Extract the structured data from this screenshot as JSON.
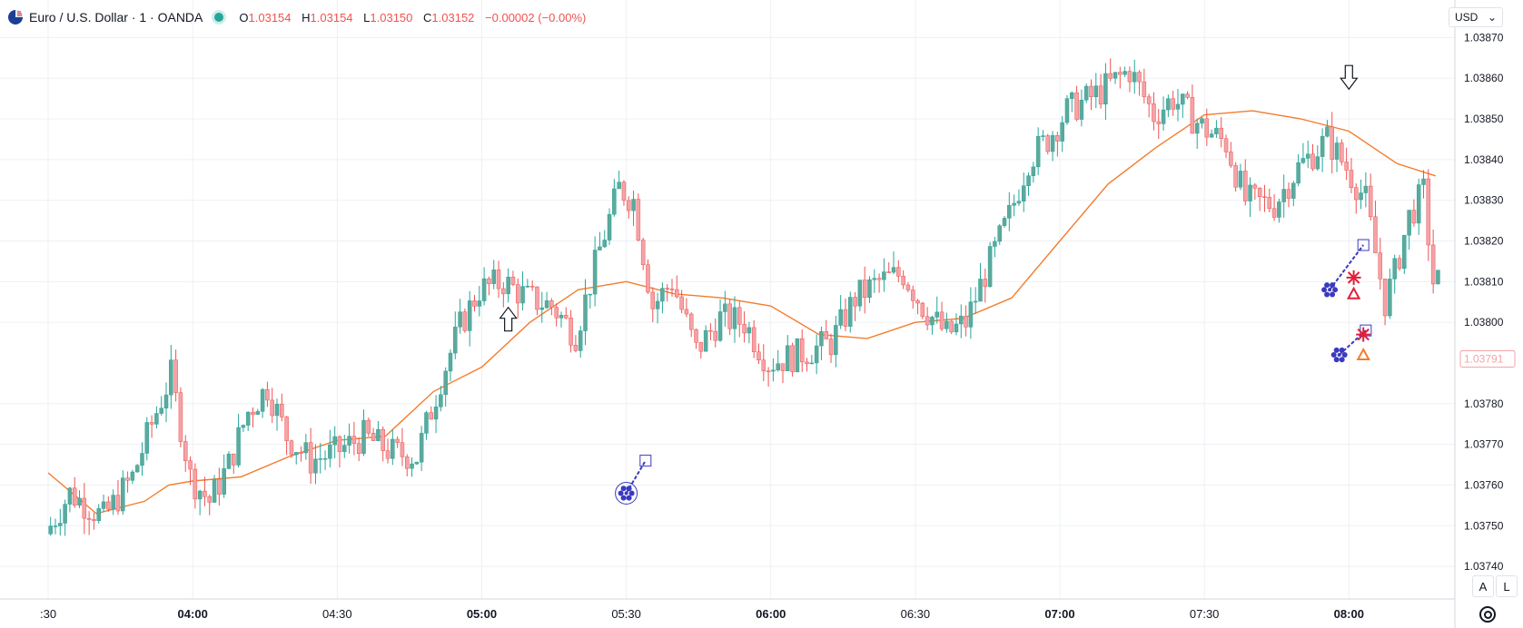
{
  "header": {
    "symbol_title": "Euro / U.S. Dollar · 1 · OANDA",
    "ohlc": {
      "o_label": "O",
      "o": "1.03154",
      "h_label": "H",
      "h": "1.03154",
      "l_label": "L",
      "l": "1.03150",
      "c_label": "C",
      "c": "1.03152",
      "change": "−0.00002 (−0.00%)"
    }
  },
  "toolbar": {
    "currency": "USD",
    "auto_button": "A",
    "log_button": "L"
  },
  "colors": {
    "up": "#26a69a",
    "down": "#ef5350",
    "up_fill": "#5fa89c",
    "down_fill": "#f4a3a8",
    "ma": "#f57c2b",
    "grid": "#eef0f4",
    "marker_blue": "#3a3ac0",
    "marker_red": "#e0203a",
    "marker_orange": "#f57c2b"
  },
  "chart_data": {
    "type": "candlestick",
    "ylim": [
      1.03732,
      1.03877
    ],
    "y_ticks": [
      "1.03870",
      "1.03860",
      "1.03850",
      "1.03840",
      "1.03830",
      "1.03820",
      "1.03810",
      "1.03800",
      "1.03780",
      "1.03770",
      "1.03760",
      "1.03750",
      "1.03740"
    ],
    "y_tick_values": [
      1.0387,
      1.0386,
      1.0385,
      1.0384,
      1.0383,
      1.0382,
      1.0381,
      1.038,
      1.0378,
      1.0377,
      1.0376,
      1.0375,
      1.0374
    ],
    "last_price_label": "1.03791",
    "last_price": 1.03791,
    "x_tick_labels": [
      ":30",
      "04:00",
      "04:30",
      "05:00",
      "05:30",
      "06:00",
      "06:30",
      "07:00",
      "07:30",
      "08:00"
    ],
    "x_tick_minutes": [
      -30,
      0,
      30,
      60,
      90,
      120,
      150,
      180,
      210,
      240
    ],
    "x_axis_minutes_per_label": "03:30 → 08:00",
    "moving_average": [
      [
        -30,
        1.03763
      ],
      [
        -20,
        1.03753
      ],
      [
        -10,
        1.03756
      ],
      [
        -5,
        1.0376
      ],
      [
        0,
        1.03761
      ],
      [
        10,
        1.03762
      ],
      [
        20,
        1.03767
      ],
      [
        30,
        1.03771
      ],
      [
        40,
        1.03772
      ],
      [
        50,
        1.03783
      ],
      [
        60,
        1.03789
      ],
      [
        70,
        1.038
      ],
      [
        80,
        1.03808
      ],
      [
        90,
        1.0381
      ],
      [
        100,
        1.03807
      ],
      [
        110,
        1.03806
      ],
      [
        120,
        1.03804
      ],
      [
        130,
        1.03797
      ],
      [
        140,
        1.03796
      ],
      [
        150,
        1.038
      ],
      [
        160,
        1.03801
      ],
      [
        170,
        1.03806
      ],
      [
        180,
        1.0382
      ],
      [
        190,
        1.03834
      ],
      [
        200,
        1.03843
      ],
      [
        210,
        1.03851
      ],
      [
        220,
        1.03852
      ],
      [
        230,
        1.0385
      ],
      [
        240,
        1.03847
      ],
      [
        250,
        1.03839
      ],
      [
        258,
        1.03836
      ]
    ],
    "candle_path": [
      [
        -30,
        1.03748
      ],
      [
        -25,
        1.03758
      ],
      [
        -18,
        1.03752
      ],
      [
        -12,
        1.03762
      ],
      [
        -8,
        1.03775
      ],
      [
        -4,
        1.03787
      ],
      [
        0,
        1.03762
      ],
      [
        4,
        1.03756
      ],
      [
        8,
        1.03765
      ],
      [
        12,
        1.03778
      ],
      [
        16,
        1.03784
      ],
      [
        20,
        1.03772
      ],
      [
        25,
        1.03766
      ],
      [
        30,
        1.03768
      ],
      [
        36,
        1.03772
      ],
      [
        42,
        1.03768
      ],
      [
        47,
        1.03767
      ],
      [
        52,
        1.03786
      ],
      [
        56,
        1.03799
      ],
      [
        60,
        1.03808
      ],
      [
        65,
        1.0381
      ],
      [
        70,
        1.03806
      ],
      [
        75,
        1.03804
      ],
      [
        80,
        1.03797
      ],
      [
        85,
        1.03818
      ],
      [
        89,
        1.03833
      ],
      [
        92,
        1.0383
      ],
      [
        96,
        1.03804
      ],
      [
        100,
        1.0381
      ],
      [
        105,
        1.03793
      ],
      [
        110,
        1.03801
      ],
      [
        115,
        1.038
      ],
      [
        120,
        1.0379
      ],
      [
        126,
        1.03792
      ],
      [
        133,
        1.03795
      ],
      [
        138,
        1.03806
      ],
      [
        143,
        1.0381
      ],
      [
        148,
        1.03812
      ],
      [
        152,
        1.03804
      ],
      [
        157,
        1.03797
      ],
      [
        161,
        1.038
      ],
      [
        165,
        1.03812
      ],
      [
        170,
        1.03826
      ],
      [
        174,
        1.0384
      ],
      [
        178,
        1.03845
      ],
      [
        182,
        1.03852
      ],
      [
        188,
        1.03856
      ],
      [
        195,
        1.03862
      ],
      [
        200,
        1.03851
      ],
      [
        204,
        1.03855
      ],
      [
        210,
        1.03848
      ],
      [
        215,
        1.03844
      ],
      [
        219,
        1.0383
      ],
      [
        225,
        1.03829
      ],
      [
        230,
        1.03838
      ],
      [
        236,
        1.03845
      ],
      [
        240,
        1.03838
      ],
      [
        244,
        1.0383
      ],
      [
        246,
        1.03817
      ],
      [
        248,
        1.03805
      ],
      [
        250,
        1.03812
      ],
      [
        253,
        1.03826
      ],
      [
        256,
        1.03832
      ],
      [
        258,
        1.0381
      ]
    ],
    "annotations": [
      {
        "type": "arrow-up",
        "t": 65.5,
        "price": 1.03801
      },
      {
        "type": "arrow-down",
        "t": 240,
        "price": 1.0386
      },
      {
        "type": "flower-marker",
        "t": 90,
        "price": 1.03758,
        "link_t": 94,
        "link_price": 1.03766
      },
      {
        "type": "star-marker",
        "t": 236,
        "price": 1.03808,
        "link_t": 243,
        "link_price": 1.03819
      },
      {
        "type": "star-marker",
        "t": 238,
        "price": 1.03792,
        "link_t": 243.5,
        "link_price": 1.03798
      },
      {
        "type": "cross-red",
        "t": 241,
        "price": 1.03811
      },
      {
        "type": "cross-red",
        "t": 243,
        "price": 1.03797
      },
      {
        "type": "triangle-red",
        "t": 241,
        "price": 1.03807
      },
      {
        "type": "triangle-orange",
        "t": 243,
        "price": 1.03792
      }
    ]
  }
}
